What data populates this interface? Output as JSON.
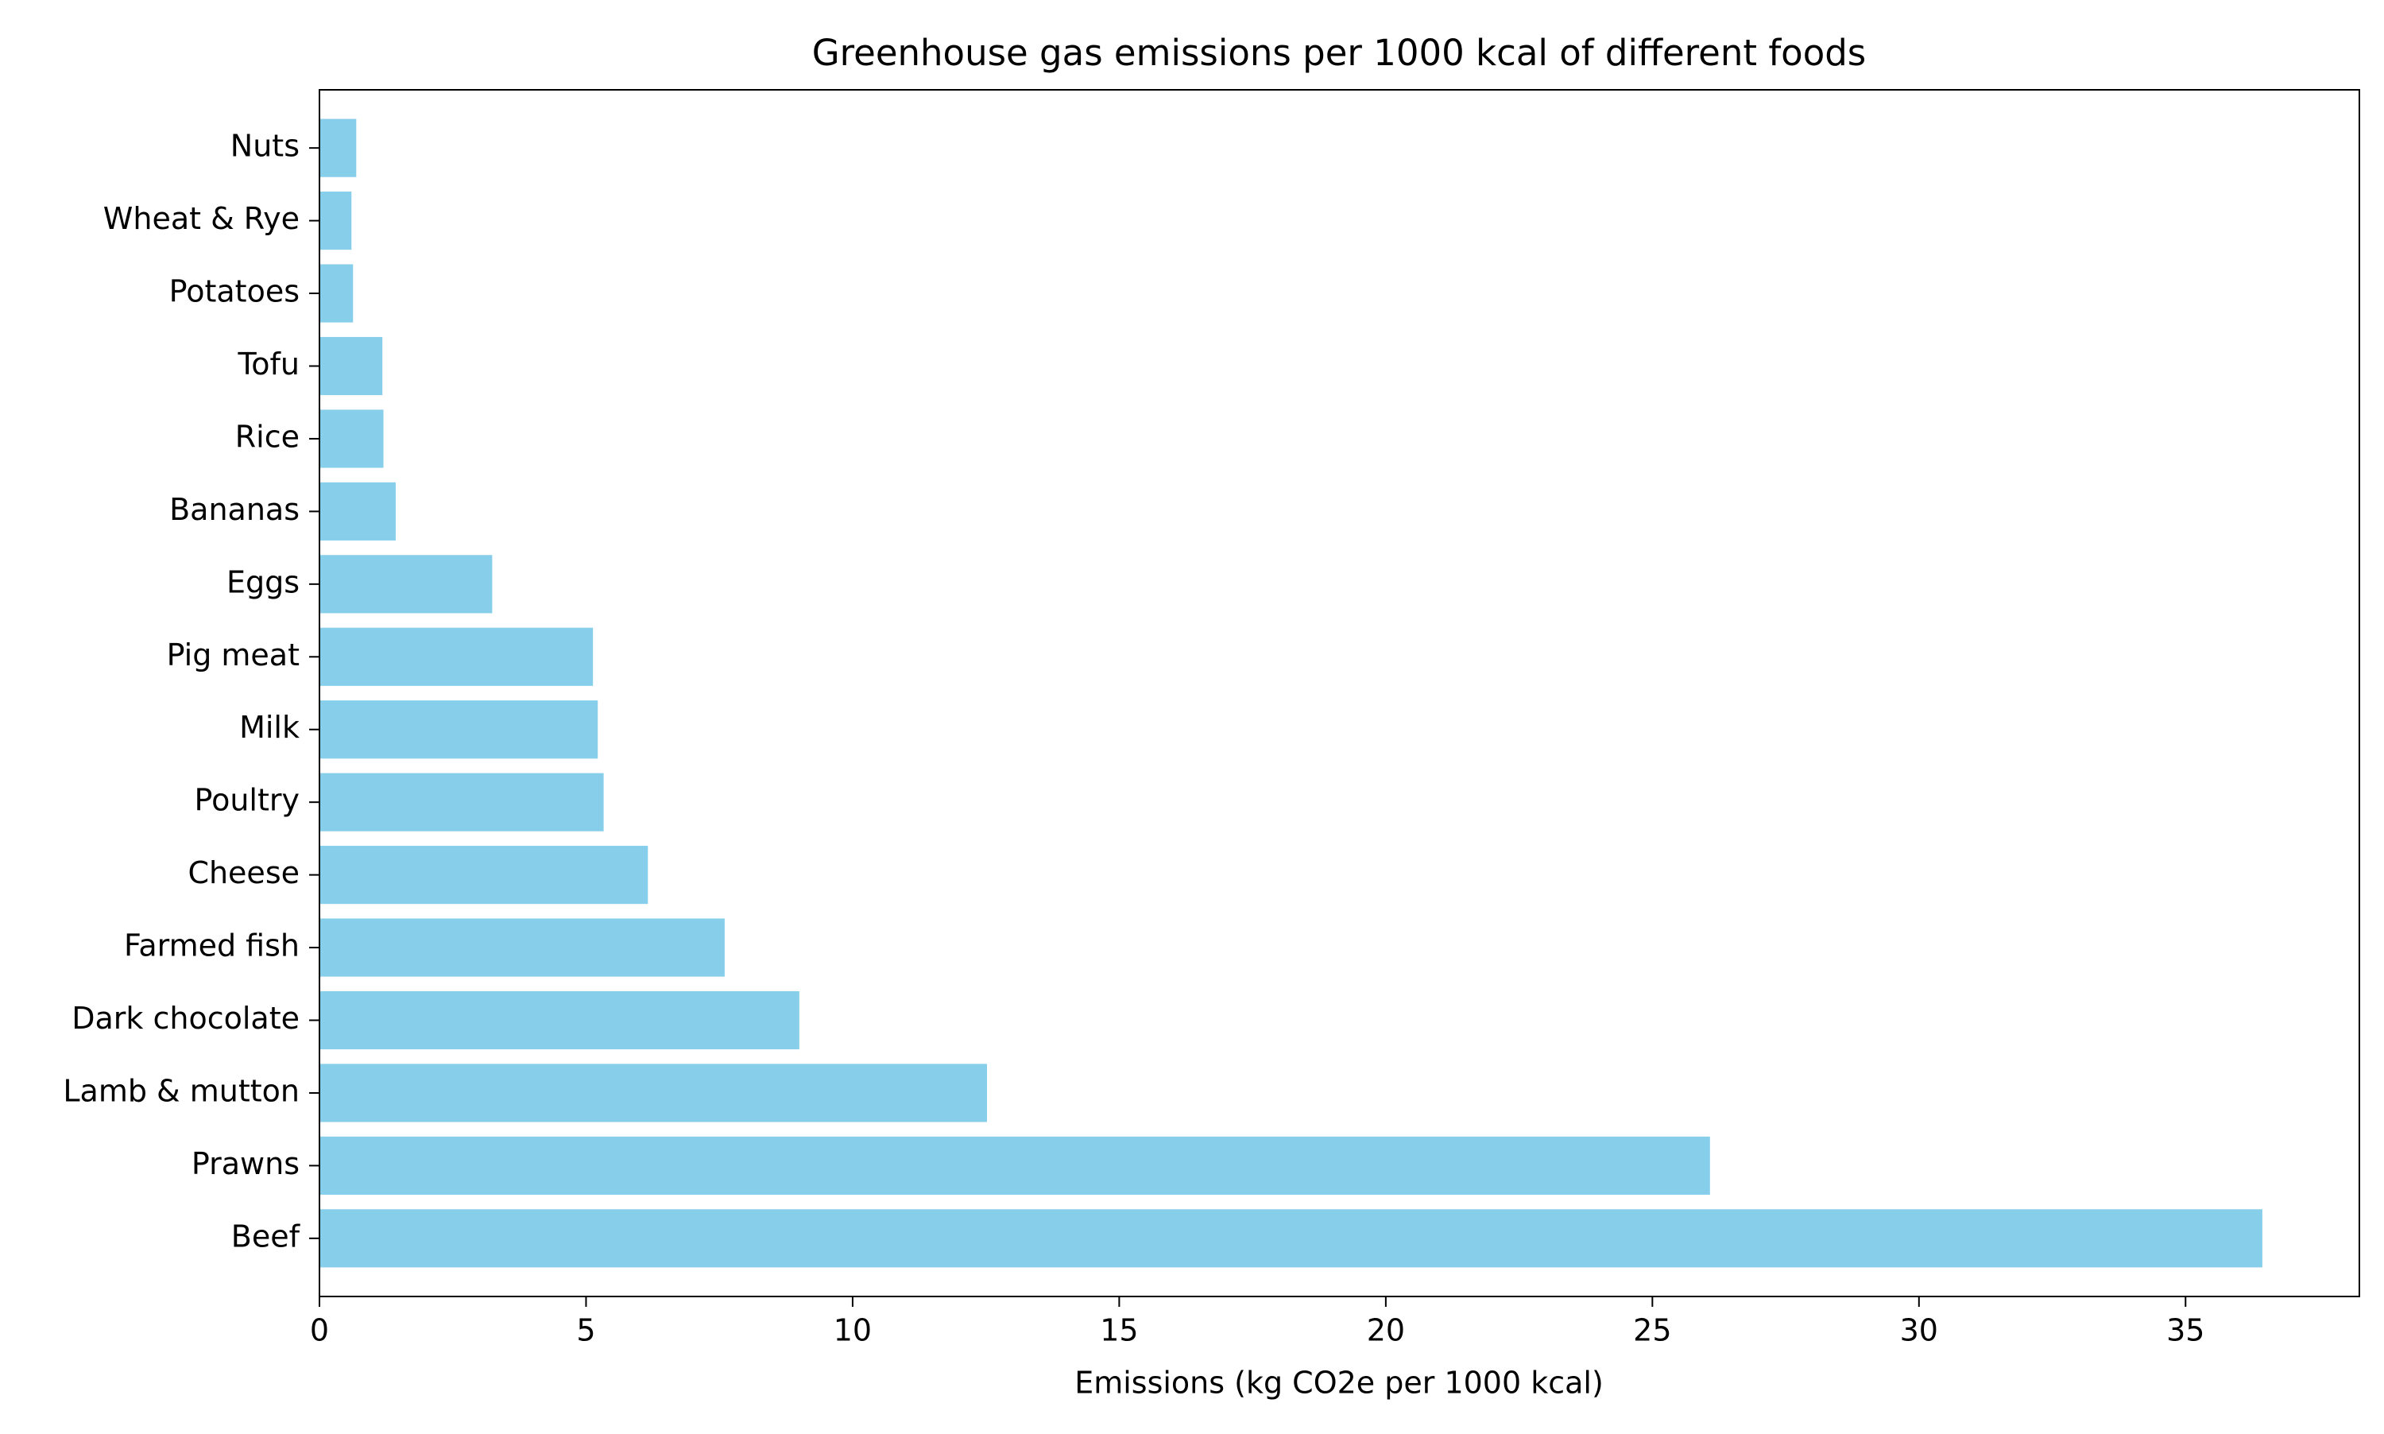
{
  "chart_data": {
    "type": "barh",
    "title": "Greenhouse gas emissions per 1000 kcal of different foods",
    "xlabel": "Emissions (kg CO2e per 1000 kcal)",
    "categories": [
      "Beef",
      "Prawns",
      "Lamb & mutton",
      "Dark chocolate",
      "Farmed fish",
      "Cheese",
      "Poultry",
      "Milk",
      "Pig meat",
      "Eggs",
      "Bananas",
      "Rice",
      "Tofu",
      "Potatoes",
      "Wheat & Rye",
      "Nuts"
    ],
    "values": [
      36.44,
      26.08,
      12.52,
      9.0,
      7.6,
      6.16,
      5.33,
      5.22,
      5.13,
      3.24,
      1.43,
      1.2,
      1.18,
      0.63,
      0.6,
      0.69
    ],
    "color": "#87ceeb",
    "xlim": [
      0,
      38.26
    ],
    "xticks": [
      0,
      5,
      10,
      15,
      20,
      25,
      30,
      35
    ],
    "grid": false
  }
}
